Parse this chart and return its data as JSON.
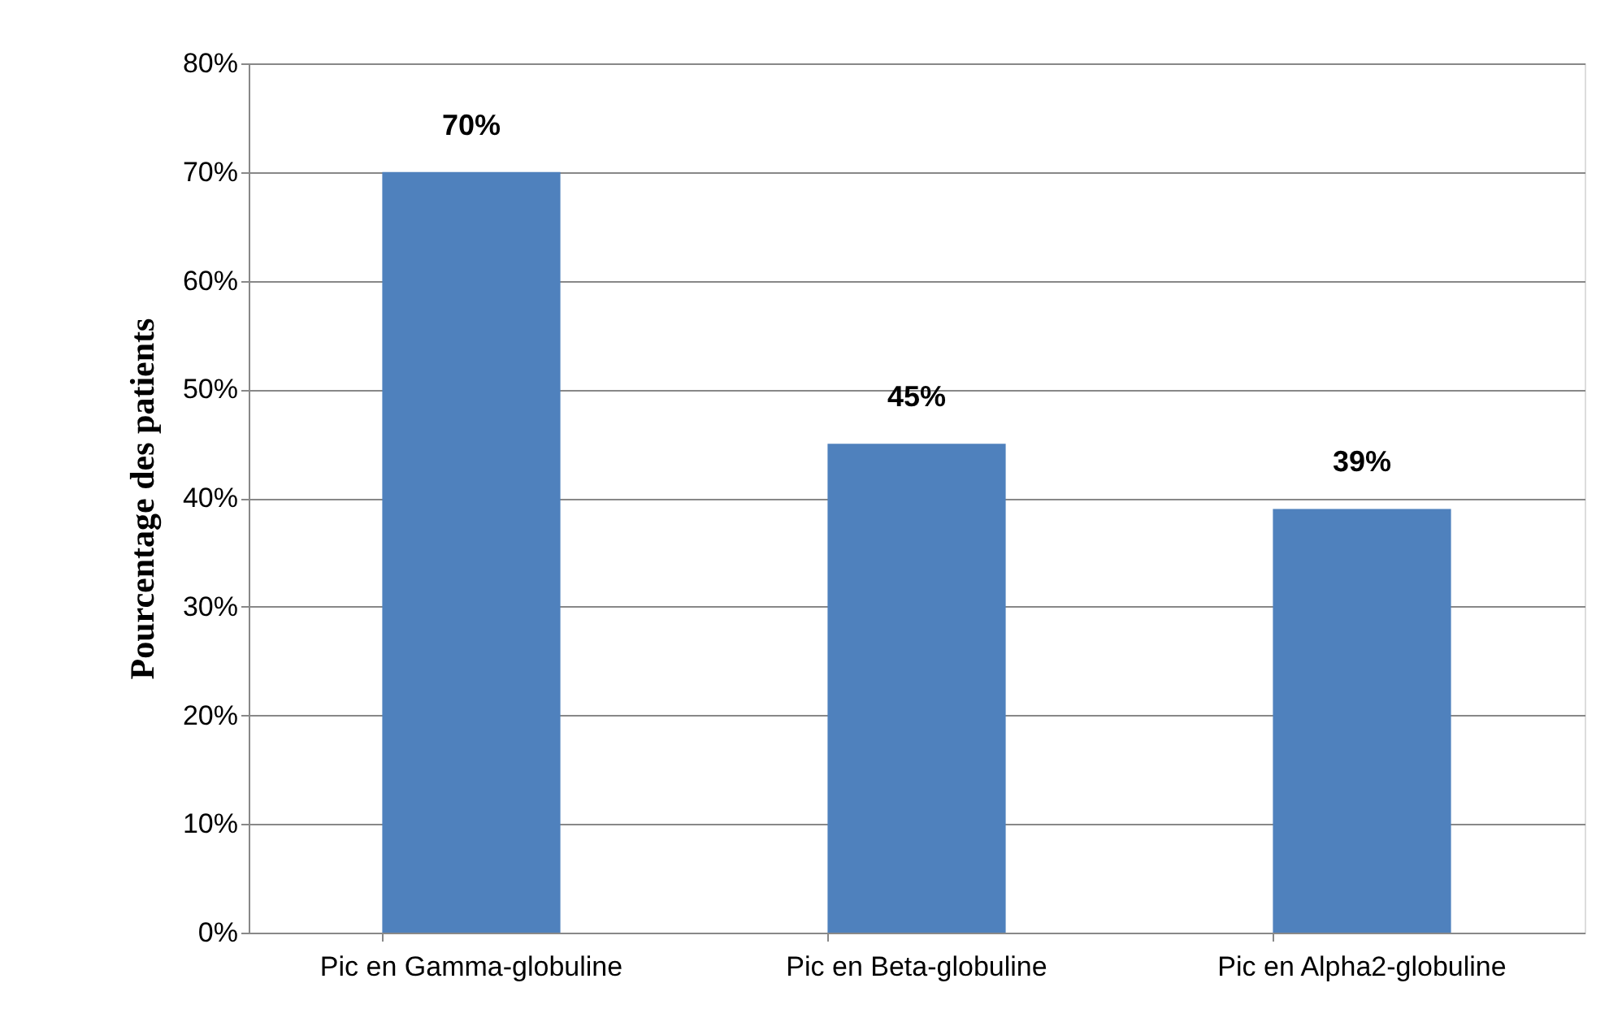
{
  "chart_data": {
    "type": "bar",
    "ylabel": "Pourcentage des patients",
    "categories": [
      "Pic en Gamma-globuline",
      "Pic en Beta-globuline",
      "Pic en Alpha2-globuline"
    ],
    "values": [
      70,
      45,
      39
    ],
    "value_labels": [
      "70%",
      "45%",
      "39%"
    ],
    "color": "#4f81bd",
    "ylim": [
      0,
      80
    ],
    "yticks": [
      {
        "value": 0,
        "label": "0%"
      },
      {
        "value": 10,
        "label": "10%"
      },
      {
        "value": 20,
        "label": "20%"
      },
      {
        "value": 30,
        "label": "30%"
      },
      {
        "value": 40,
        "label": "40%"
      },
      {
        "value": 50,
        "label": "50%"
      },
      {
        "value": 60,
        "label": "60%"
      },
      {
        "value": 70,
        "label": "70%"
      },
      {
        "value": 80,
        "label": "80%"
      }
    ],
    "grid": "y"
  }
}
